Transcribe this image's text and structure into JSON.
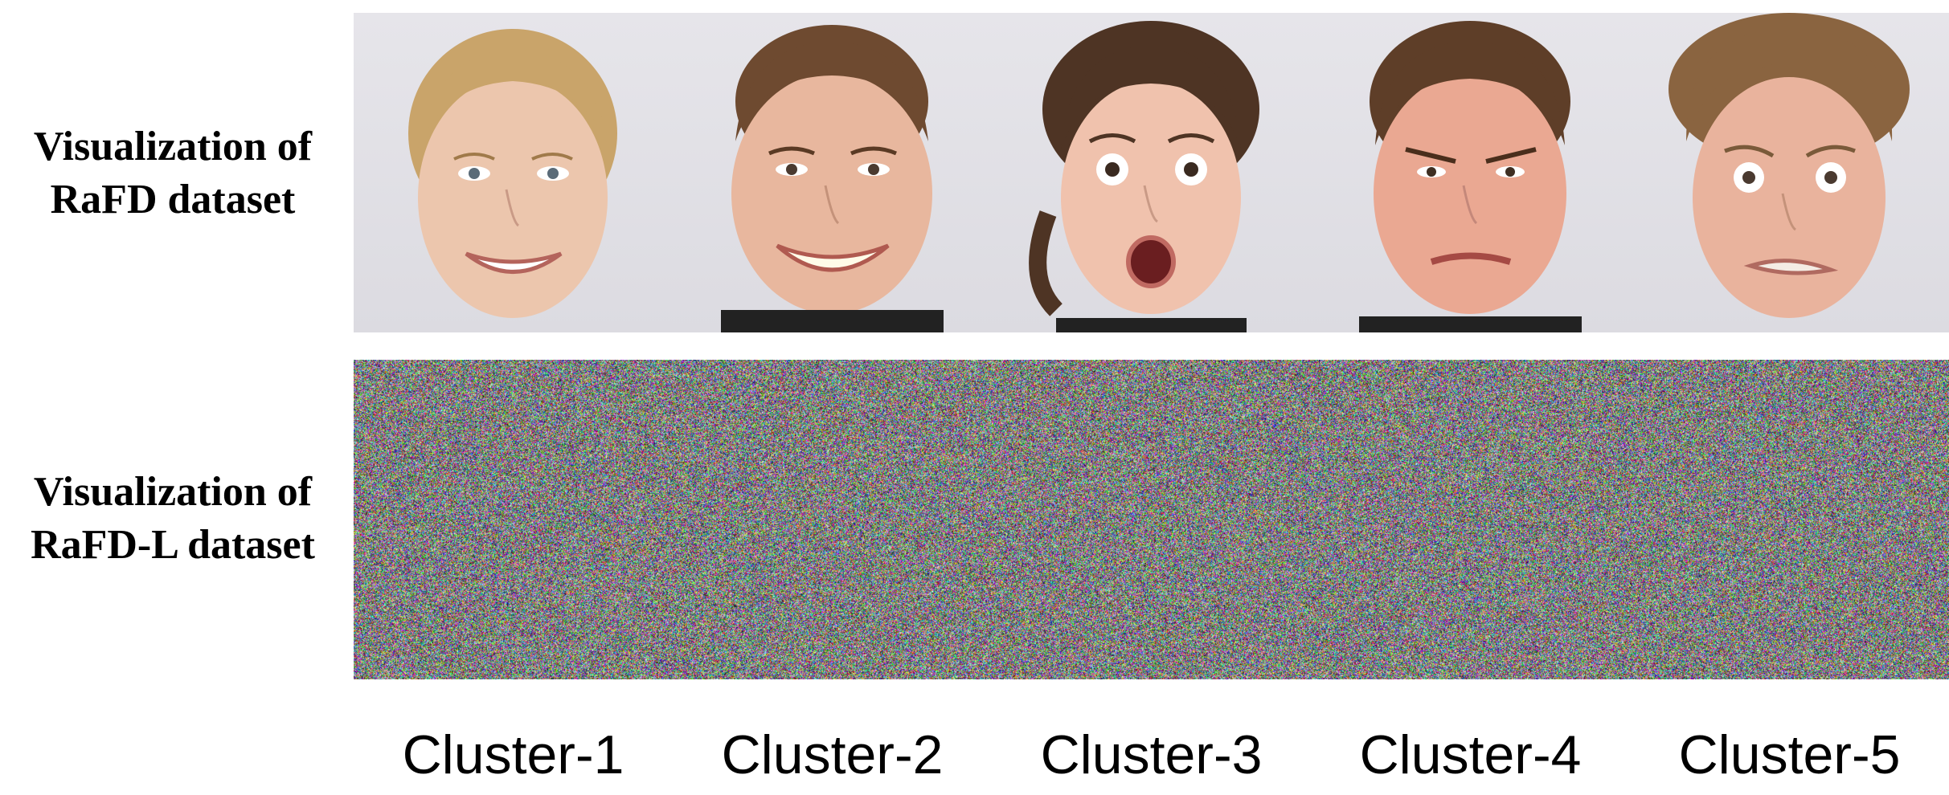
{
  "rows": [
    {
      "label_line1": "Visualization of",
      "label_line2": "RaFD dataset"
    },
    {
      "label_line1": "Visualization of",
      "label_line2": "RaFD-L dataset"
    }
  ],
  "faces": [
    {
      "expression": "happy"
    },
    {
      "expression": "happy"
    },
    {
      "expression": "surprised"
    },
    {
      "expression": "angry"
    },
    {
      "expression": "fearful"
    }
  ],
  "clusters": [
    "Cluster-1",
    "Cluster-2",
    "Cluster-3",
    "Cluster-4",
    "Cluster-5"
  ],
  "colors": {
    "skin": "#e9bfa8",
    "hair_blonde": "#c9a46a",
    "hair_brown": "#6e4a30",
    "background": "#e3e2e7"
  }
}
